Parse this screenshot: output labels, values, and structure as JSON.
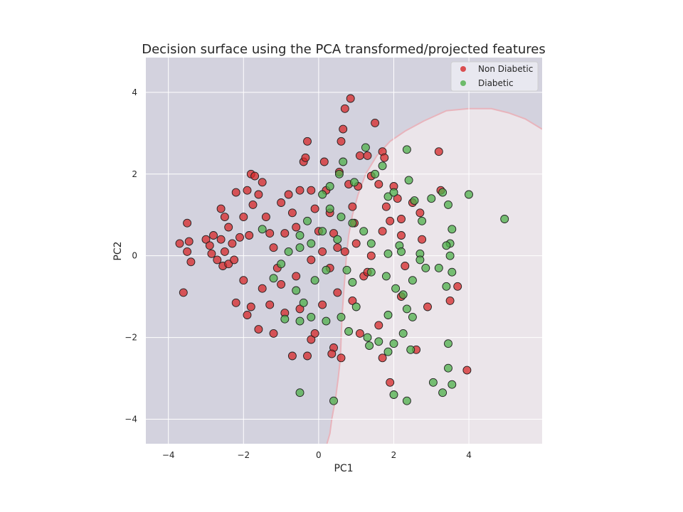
{
  "chart_data": {
    "type": "scatter",
    "title": "Decision surface using the PCA transformed/projected features",
    "xlabel": "PC1",
    "ylabel": "PC2",
    "xlim": [
      -4.6,
      5.95
    ],
    "ylim": [
      -4.6,
      4.85
    ],
    "xticks": [
      -4,
      -2,
      0,
      2,
      4
    ],
    "yticks": [
      -4,
      -2,
      0,
      2,
      4
    ],
    "xtick_labels": [
      "−4",
      "−2",
      "0",
      "2",
      "4"
    ],
    "ytick_labels": [
      "−4",
      "−2",
      "0",
      "2",
      "4"
    ],
    "grid": true,
    "legend_position": "top-right",
    "background_color": "#eae6eb",
    "region_colors": {
      "Non Diabetic": "#d3d2de",
      "Diabetic": "#ebe5ea"
    },
    "boundary_color": "#e8b4bc",
    "decision_boundary": [
      [
        0.22,
        -4.6
      ],
      [
        0.3,
        -4.35
      ],
      [
        0.35,
        -4.0
      ],
      [
        0.45,
        -3.5
      ],
      [
        0.52,
        -3.0
      ],
      [
        0.58,
        -2.5
      ],
      [
        0.6,
        -2.0
      ],
      [
        0.62,
        -1.5
      ],
      [
        0.66,
        -1.0
      ],
      [
        0.7,
        -0.5
      ],
      [
        0.74,
        0.0
      ],
      [
        0.8,
        0.5
      ],
      [
        0.9,
        1.0
      ],
      [
        1.05,
        1.5
      ],
      [
        1.25,
        2.0
      ],
      [
        1.55,
        2.45
      ],
      [
        1.9,
        2.8
      ],
      [
        2.3,
        3.05
      ],
      [
        2.8,
        3.3
      ],
      [
        3.4,
        3.55
      ],
      [
        4.0,
        3.6
      ],
      [
        4.6,
        3.6
      ],
      [
        5.05,
        3.5
      ],
      [
        5.5,
        3.35
      ],
      [
        5.95,
        3.1
      ]
    ],
    "series": [
      {
        "name": "Non Diabetic",
        "color": "#d62728",
        "points": [
          [
            -3.6,
            -0.9
          ],
          [
            -3.5,
            0.8
          ],
          [
            -3.45,
            0.35
          ],
          [
            -3.5,
            0.1
          ],
          [
            -3.4,
            -0.15
          ],
          [
            -3.7,
            0.3
          ],
          [
            -3.0,
            0.4
          ],
          [
            -2.9,
            0.25
          ],
          [
            -2.8,
            0.5
          ],
          [
            -2.85,
            0.05
          ],
          [
            -2.7,
            -0.1
          ],
          [
            -2.6,
            0.4
          ],
          [
            -2.6,
            1.15
          ],
          [
            -2.5,
            0.95
          ],
          [
            -2.4,
            0.7
          ],
          [
            -2.5,
            0.1
          ],
          [
            -2.55,
            -0.25
          ],
          [
            -2.4,
            -0.2
          ],
          [
            -2.3,
            0.3
          ],
          [
            -2.25,
            -0.1
          ],
          [
            -2.2,
            1.55
          ],
          [
            -2.2,
            -1.15
          ],
          [
            -2.1,
            0.45
          ],
          [
            -2.0,
            0.95
          ],
          [
            -2.0,
            -0.6
          ],
          [
            -1.9,
            1.6
          ],
          [
            -1.85,
            0.5
          ],
          [
            -1.8,
            2.0
          ],
          [
            -1.75,
            1.25
          ],
          [
            -1.7,
            1.95
          ],
          [
            -1.6,
            1.5
          ],
          [
            -1.5,
            1.8
          ],
          [
            -1.4,
            0.95
          ],
          [
            -1.3,
            0.55
          ],
          [
            -1.2,
            0.2
          ],
          [
            -1.1,
            -0.3
          ],
          [
            -1.0,
            1.3
          ],
          [
            -0.9,
            0.55
          ],
          [
            -0.8,
            1.5
          ],
          [
            -0.7,
            1.05
          ],
          [
            -0.6,
            0.7
          ],
          [
            -0.5,
            1.6
          ],
          [
            -0.4,
            2.3
          ],
          [
            -0.3,
            2.8
          ],
          [
            -0.35,
            2.4
          ],
          [
            -0.2,
            1.6
          ],
          [
            -0.1,
            1.15
          ],
          [
            0.0,
            0.6
          ],
          [
            0.1,
            0.1
          ],
          [
            0.15,
            2.3
          ],
          [
            0.2,
            1.6
          ],
          [
            0.3,
            1.05
          ],
          [
            0.4,
            0.55
          ],
          [
            0.5,
            0.2
          ],
          [
            0.55,
            2.05
          ],
          [
            0.6,
            2.8
          ],
          [
            0.65,
            3.1
          ],
          [
            0.7,
            3.6
          ],
          [
            0.8,
            1.75
          ],
          [
            0.85,
            3.85
          ],
          [
            0.9,
            1.2
          ],
          [
            0.95,
            0.8
          ],
          [
            1.0,
            0.3
          ],
          [
            1.05,
            1.7
          ],
          [
            1.1,
            2.45
          ],
          [
            1.2,
            -0.5
          ],
          [
            1.3,
            2.45
          ],
          [
            1.4,
            1.95
          ],
          [
            1.5,
            3.25
          ],
          [
            1.6,
            1.75
          ],
          [
            1.7,
            2.55
          ],
          [
            1.75,
            2.4
          ],
          [
            1.8,
            1.2
          ],
          [
            1.9,
            0.85
          ],
          [
            2.0,
            1.7
          ],
          [
            2.1,
            1.4
          ],
          [
            2.2,
            0.9
          ],
          [
            2.3,
            -0.25
          ],
          [
            2.5,
            1.3
          ],
          [
            2.6,
            -2.3
          ],
          [
            2.7,
            1.05
          ],
          [
            2.75,
            0.4
          ],
          [
            2.9,
            -1.25
          ],
          [
            3.2,
            2.55
          ],
          [
            3.25,
            1.6
          ],
          [
            3.7,
            -0.75
          ],
          [
            3.95,
            -2.8
          ],
          [
            1.9,
            -3.1
          ],
          [
            1.7,
            -2.5
          ],
          [
            1.1,
            -1.9
          ],
          [
            0.6,
            -2.5
          ],
          [
            0.4,
            -2.25
          ],
          [
            0.35,
            -2.4
          ],
          [
            -0.2,
            -2.05
          ],
          [
            -0.3,
            -2.45
          ],
          [
            -0.7,
            -2.45
          ],
          [
            -1.2,
            -1.9
          ],
          [
            -1.6,
            -1.8
          ],
          [
            -1.9,
            -1.45
          ],
          [
            -1.8,
            -1.25
          ],
          [
            -1.3,
            -1.2
          ],
          [
            -0.9,
            -1.4
          ],
          [
            -0.5,
            -1.3
          ],
          [
            -0.1,
            -1.9
          ],
          [
            0.1,
            -1.2
          ],
          [
            0.5,
            -0.9
          ],
          [
            0.9,
            -1.1
          ],
          [
            1.3,
            -0.4
          ],
          [
            1.6,
            -1.7
          ],
          [
            2.2,
            -1.0
          ],
          [
            3.5,
            -1.1
          ],
          [
            -1.5,
            -0.8
          ],
          [
            -1.0,
            -0.7
          ],
          [
            -0.6,
            -0.5
          ],
          [
            -0.2,
            -0.1
          ],
          [
            0.3,
            -0.3
          ],
          [
            0.7,
            0.1
          ],
          [
            1.4,
            0.0
          ],
          [
            1.7,
            0.6
          ],
          [
            2.2,
            0.5
          ]
        ]
      },
      {
        "name": "Diabetic",
        "color": "#4daf4a",
        "points": [
          [
            -0.5,
            -3.35
          ],
          [
            0.4,
            -3.55
          ],
          [
            2.0,
            -3.4
          ],
          [
            2.35,
            -3.55
          ],
          [
            3.05,
            -3.1
          ],
          [
            3.3,
            -3.35
          ],
          [
            3.55,
            -3.15
          ],
          [
            3.45,
            -2.75
          ],
          [
            2.45,
            -2.3
          ],
          [
            1.85,
            -2.35
          ],
          [
            1.35,
            -2.2
          ],
          [
            3.45,
            -2.15
          ],
          [
            1.6,
            -2.1
          ],
          [
            2.0,
            -2.15
          ],
          [
            2.25,
            -1.9
          ],
          [
            0.8,
            -1.85
          ],
          [
            1.3,
            -2.0
          ],
          [
            2.5,
            -1.5
          ],
          [
            1.85,
            -1.45
          ],
          [
            0.6,
            -1.5
          ],
          [
            1.0,
            -1.25
          ],
          [
            2.35,
            -1.3
          ],
          [
            2.05,
            -0.8
          ],
          [
            2.25,
            -0.95
          ],
          [
            3.4,
            -0.75
          ],
          [
            3.55,
            -0.4
          ],
          [
            2.5,
            -0.6
          ],
          [
            1.4,
            -0.4
          ],
          [
            0.9,
            -0.65
          ],
          [
            0.75,
            -0.35
          ],
          [
            1.8,
            -0.5
          ],
          [
            2.85,
            -0.3
          ],
          [
            3.2,
            -0.3
          ],
          [
            3.5,
            0.0
          ],
          [
            2.7,
            0.05
          ],
          [
            2.15,
            0.25
          ],
          [
            1.85,
            0.05
          ],
          [
            1.4,
            0.3
          ],
          [
            1.2,
            0.6
          ],
          [
            0.9,
            0.8
          ],
          [
            0.6,
            0.95
          ],
          [
            0.3,
            1.15
          ],
          [
            0.1,
            1.5
          ],
          [
            0.3,
            1.7
          ],
          [
            0.55,
            2.0
          ],
          [
            0.65,
            2.3
          ],
          [
            0.95,
            1.8
          ],
          [
            1.25,
            2.65
          ],
          [
            1.5,
            2.0
          ],
          [
            1.7,
            2.2
          ],
          [
            1.85,
            1.45
          ],
          [
            2.0,
            1.55
          ],
          [
            2.35,
            2.6
          ],
          [
            2.4,
            1.85
          ],
          [
            2.55,
            1.35
          ],
          [
            2.75,
            0.85
          ],
          [
            3.0,
            1.4
          ],
          [
            3.3,
            1.55
          ],
          [
            3.45,
            1.25
          ],
          [
            3.55,
            0.65
          ],
          [
            3.5,
            0.3
          ],
          [
            4.0,
            1.5
          ],
          [
            4.95,
            0.9
          ],
          [
            3.4,
            0.25
          ],
          [
            2.7,
            -0.1
          ],
          [
            2.2,
            0.1
          ],
          [
            -0.3,
            0.85
          ],
          [
            -0.5,
            0.5
          ],
          [
            -0.8,
            0.1
          ],
          [
            -1.0,
            -0.2
          ],
          [
            -1.5,
            0.65
          ],
          [
            -1.2,
            -0.55
          ],
          [
            -0.6,
            -0.85
          ],
          [
            -0.4,
            -1.15
          ],
          [
            -0.9,
            -1.55
          ],
          [
            -0.5,
            -1.6
          ],
          [
            -0.2,
            -1.5
          ],
          [
            0.2,
            -1.6
          ],
          [
            -0.1,
            -0.6
          ],
          [
            0.2,
            -0.35
          ],
          [
            0.5,
            0.4
          ],
          [
            0.1,
            0.6
          ],
          [
            -0.2,
            0.3
          ],
          [
            -0.5,
            0.2
          ]
        ]
      }
    ]
  }
}
